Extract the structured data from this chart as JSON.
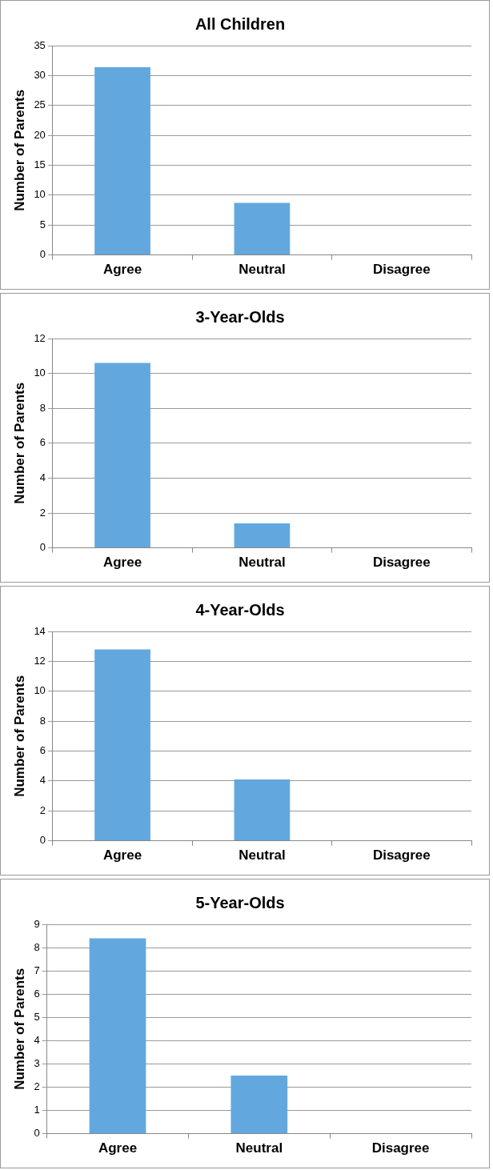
{
  "chart_data": [
    {
      "type": "bar",
      "title": "All Children",
      "ylabel": "Number of Parents",
      "categories": [
        "Agree",
        "Neutral",
        "Disagree"
      ],
      "values": [
        31.4,
        8.7,
        0
      ],
      "color": "#62a8df",
      "ylim": [
        0,
        35
      ],
      "yticks": [
        0,
        5,
        10,
        15,
        20,
        25,
        30,
        35
      ],
      "grid": "y"
    },
    {
      "type": "bar",
      "title": "3-Year-Olds",
      "ylabel": "Number of Parents",
      "categories": [
        "Agree",
        "Neutral",
        "Disagree"
      ],
      "values": [
        10.6,
        1.4,
        0
      ],
      "color": "#62a8df",
      "ylim": [
        0,
        12
      ],
      "yticks": [
        0,
        2,
        4,
        6,
        8,
        10,
        12
      ],
      "grid": "y"
    },
    {
      "type": "bar",
      "title": "4-Year-Olds",
      "ylabel": "Number of Parents",
      "categories": [
        "Agree",
        "Neutral",
        "Disagree"
      ],
      "values": [
        12.8,
        4.1,
        0
      ],
      "color": "#62a8df",
      "ylim": [
        0,
        14
      ],
      "yticks": [
        0,
        2,
        4,
        6,
        8,
        10,
        12,
        14
      ],
      "grid": "y"
    },
    {
      "type": "bar",
      "title": "5-Year-Olds",
      "ylabel": "Number of Parents",
      "categories": [
        "Agree",
        "Neutral",
        "Disagree"
      ],
      "values": [
        8.4,
        2.5,
        0
      ],
      "color": "#62a8df",
      "ylim": [
        0,
        9
      ],
      "yticks": [
        0,
        1,
        2,
        3,
        4,
        5,
        6,
        7,
        8,
        9
      ],
      "grid": "y"
    }
  ]
}
